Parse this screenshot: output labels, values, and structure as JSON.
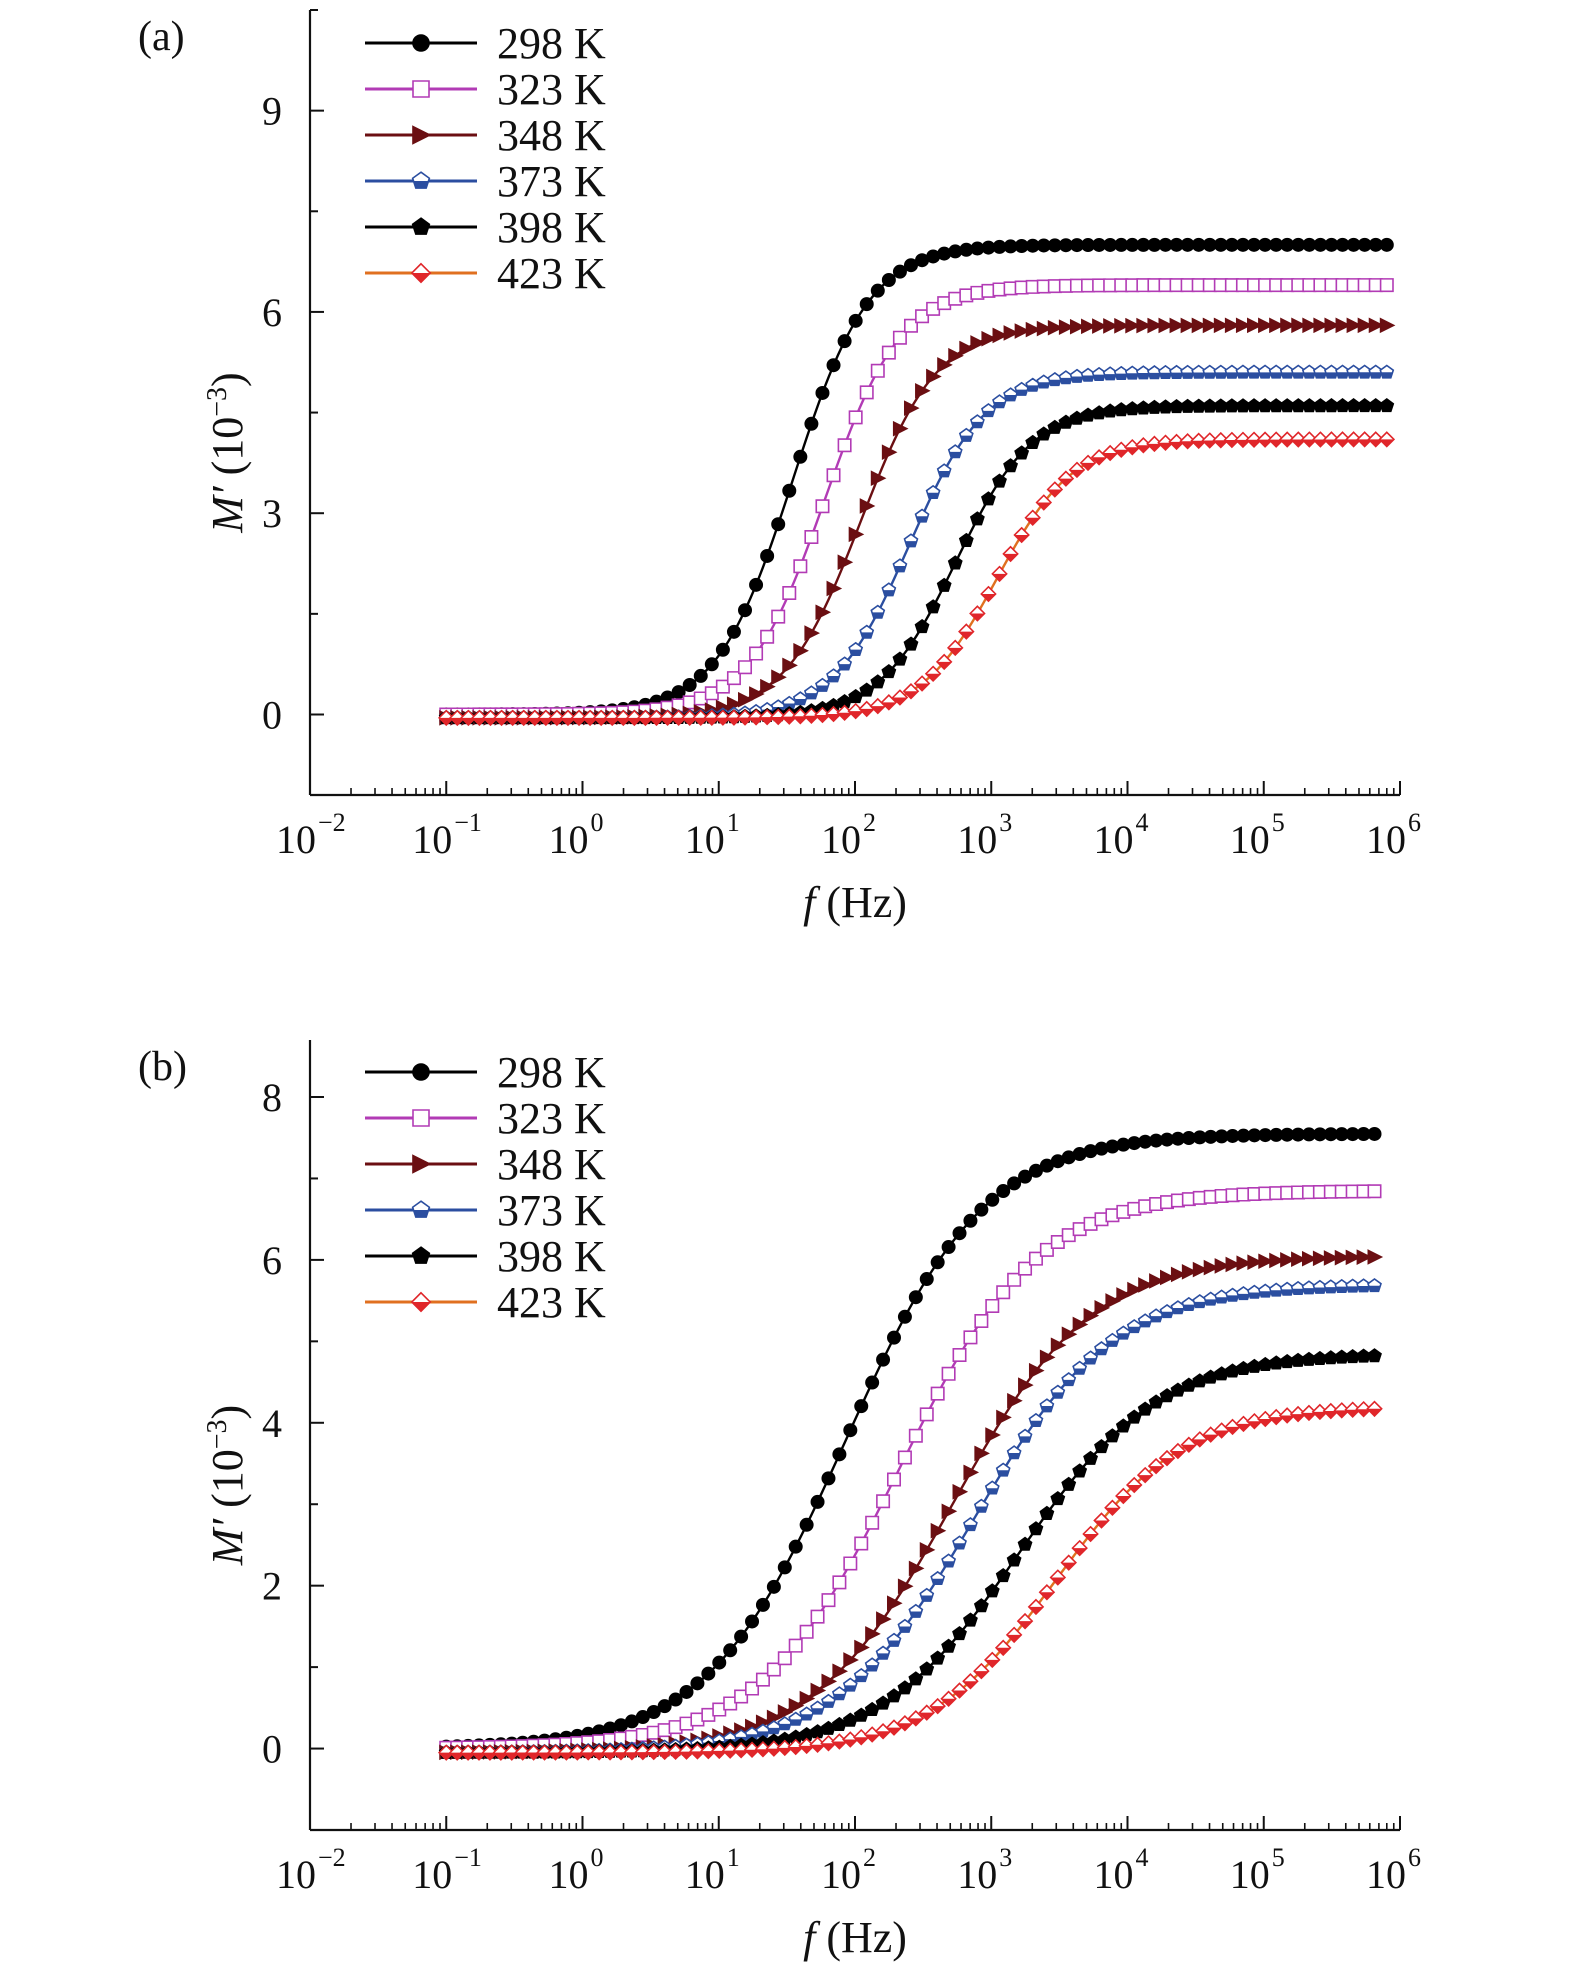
{
  "chart_data": [
    {
      "type": "line",
      "panel_label": "(a)",
      "xlabel_var": "f",
      "xlabel_unit": "(Hz)",
      "ylabel_var": "M′",
      "ylabel_unit": "(10",
      "ylabel_exp": "−3",
      "ylabel_close": ")",
      "xscale": "log",
      "xlim": [
        0.01,
        1000000
      ],
      "ylim": [
        -1.2,
        10.5
      ],
      "yticks": [
        0,
        3,
        6,
        9
      ],
      "xtick_exponents": [
        "−2",
        "−1",
        "0",
        "1",
        "2",
        "3",
        "4",
        "5",
        "6"
      ],
      "x_range": [
        0.1,
        800000
      ],
      "legend": "top-left",
      "series": [
        {
          "name": "298 K",
          "color": "#000000",
          "line": "#000000",
          "marker": "circle",
          "fill": "filled",
          "low": 0.0,
          "high": 7.0,
          "fc": 35,
          "width": 1.0
        },
        {
          "name": "323 K",
          "color": "#b23bb5",
          "line": "#b23bb5",
          "marker": "square",
          "fill": "open",
          "low": 0.0,
          "high": 6.4,
          "fc": 60,
          "width": 1.0
        },
        {
          "name": "348 K",
          "color": "#6b0f12",
          "line": "#6b0f12",
          "marker": "triangle-right",
          "fill": "filled",
          "low": -0.05,
          "high": 5.8,
          "fc": 110,
          "width": 1.0
        },
        {
          "name": "373 K",
          "color": "#2b4ea0",
          "line": "#2b4ea0",
          "marker": "pentagon",
          "fill": "half",
          "low": -0.05,
          "high": 5.1,
          "fc": 250,
          "width": 1.0
        },
        {
          "name": "398 K",
          "color": "#000000",
          "line": "#000000",
          "marker": "pentagon",
          "fill": "filled",
          "low": -0.05,
          "high": 4.6,
          "fc": 550,
          "width": 1.0
        },
        {
          "name": "423 K",
          "color": "#e0262a",
          "line": "#e07020",
          "marker": "diamond",
          "fill": "half",
          "low": -0.05,
          "high": 4.1,
          "fc": 1100,
          "width": 1.0
        }
      ]
    },
    {
      "type": "line",
      "panel_label": "(b)",
      "xlabel_var": "f",
      "xlabel_unit": "(Hz)",
      "ylabel_var": "M′",
      "ylabel_unit": "(10",
      "ylabel_exp": "−3",
      "ylabel_close": ")",
      "xscale": "log",
      "xlim": [
        0.01,
        1000000
      ],
      "ylim": [
        -1.0,
        8.7
      ],
      "yticks": [
        0,
        2,
        4,
        6,
        8
      ],
      "xtick_exponents": [
        "−2",
        "−1",
        "0",
        "1",
        "2",
        "3",
        "4",
        "5",
        "6"
      ],
      "x_range": [
        0.1,
        650000
      ],
      "legend": "top-left",
      "series": [
        {
          "name": "298 K",
          "color": "#000000",
          "line": "#000000",
          "marker": "circle",
          "fill": "filled",
          "low": 0.0,
          "high": 7.55,
          "fc": 85,
          "width": 0.55
        },
        {
          "name": "323 K",
          "color": "#b23bb5",
          "line": "#b23bb5",
          "marker": "square",
          "fill": "open",
          "low": 0.0,
          "high": 6.85,
          "fc": 210,
          "width": 0.55
        },
        {
          "name": "348 K",
          "color": "#6b0f12",
          "line": "#6b0f12",
          "marker": "triangle-right",
          "fill": "filled",
          "low": -0.05,
          "high": 6.05,
          "fc": 520,
          "width": 0.55
        },
        {
          "name": "373 K",
          "color": "#2b4ea0",
          "line": "#2b4ea0",
          "marker": "pentagon",
          "fill": "half",
          "low": -0.05,
          "high": 5.7,
          "fc": 750,
          "width": 0.55
        },
        {
          "name": "398 K",
          "color": "#000000",
          "line": "#000000",
          "marker": "pentagon",
          "fill": "filled",
          "low": -0.05,
          "high": 4.85,
          "fc": 1600,
          "width": 0.55
        },
        {
          "name": "423 K",
          "color": "#e0262a",
          "line": "#e07020",
          "marker": "diamond",
          "fill": "half",
          "low": -0.05,
          "high": 4.2,
          "fc": 3000,
          "width": 0.6
        }
      ]
    }
  ]
}
